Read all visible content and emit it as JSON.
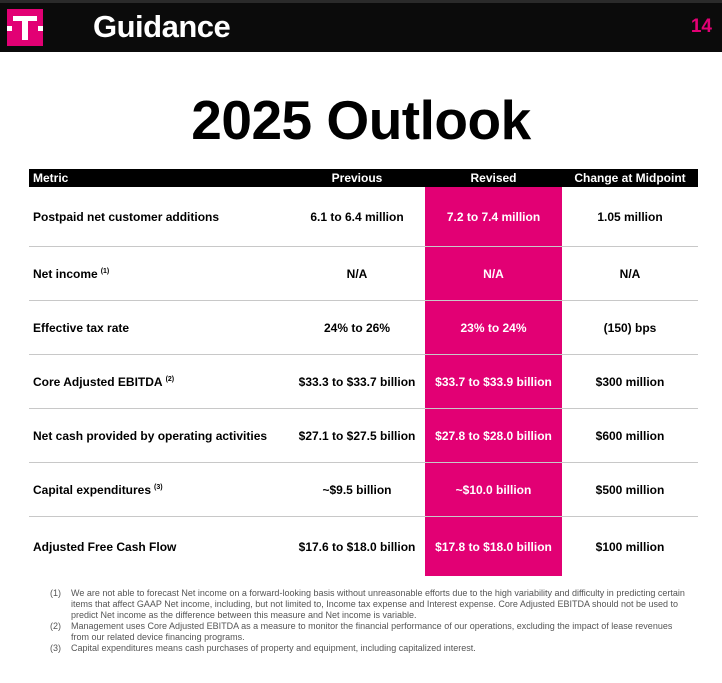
{
  "header": {
    "title": "Guidance",
    "page_number": "14",
    "logo_icon": "t-mobile-logo-icon",
    "colors": {
      "brand": "#e20074",
      "header_bg": "#0b0b0b"
    }
  },
  "slide_title": "2025 Outlook",
  "table": {
    "columns": [
      "Metric",
      "Previous",
      "Revised",
      "Change at Midpoint"
    ],
    "rows": [
      {
        "metric": "Postpaid net customer additions",
        "footnote": "",
        "previous": "6.1 to 6.4 million",
        "revised": "7.2 to 7.4 million",
        "change": "1.05 million"
      },
      {
        "metric": "Net income",
        "footnote": "(1)",
        "previous": "N/A",
        "revised": "N/A",
        "change": "N/A"
      },
      {
        "metric": "Effective tax rate",
        "footnote": "",
        "previous": "24% to 26%",
        "revised": "23% to 24%",
        "change": "(150) bps"
      },
      {
        "metric": "Core Adjusted EBITDA",
        "footnote": "(2)",
        "previous": "$33.3 to $33.7 billion",
        "revised": "$33.7 to $33.9 billion",
        "change": "$300 million"
      },
      {
        "metric": "Net cash provided by operating activities",
        "footnote": "",
        "previous": "$27.1 to $27.5 billion",
        "revised": "$27.8 to $28.0 billion",
        "change": "$600 million"
      },
      {
        "metric": "Capital expenditures",
        "footnote": "(3)",
        "previous": "~$9.5 billion",
        "revised": "~$10.0 billion",
        "change": "$500 million"
      },
      {
        "metric": "Adjusted Free Cash Flow",
        "footnote": "",
        "previous": "$17.6 to $18.0 billion",
        "revised": "$17.8 to $18.0 billion",
        "change": "$100 million"
      }
    ]
  },
  "footnotes": [
    {
      "num": "(1)",
      "text": "We are not able to forecast Net income on a forward-looking basis without unreasonable efforts due to the high variability and difficulty in predicting certain items that affect GAAP Net income, including, but not limited to, Income tax expense and Interest expense. Core Adjusted EBITDA should not be used to predict Net income as the difference between this measure and Net income is variable."
    },
    {
      "num": "(2)",
      "text": "Management uses Core Adjusted EBITDA as a measure to monitor the financial performance of our operations, excluding the impact of lease revenues from our related device financing programs."
    },
    {
      "num": "(3)",
      "text": "Capital expenditures means cash purchases of property and equipment, including capitalized interest."
    }
  ]
}
